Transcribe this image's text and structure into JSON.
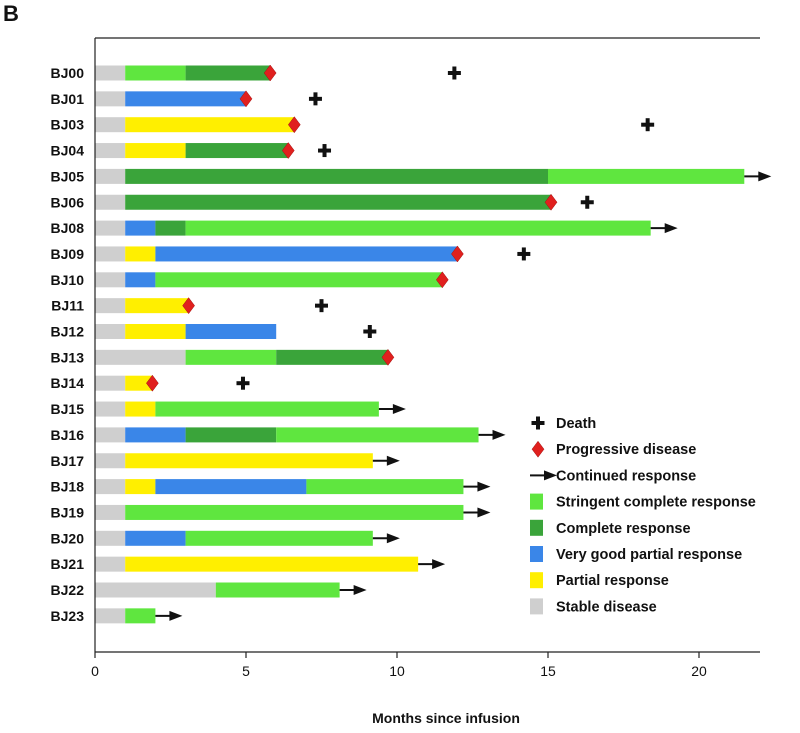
{
  "chart_data": {
    "type": "bar",
    "panel_label": "B",
    "xlabel": "Months since infusion",
    "ylabel": "",
    "xlim": [
      0,
      22
    ],
    "xticks": [
      0,
      5,
      10,
      15,
      20
    ],
    "colors": {
      "stable": "#cfcfcf",
      "partial": "#ffef00",
      "vgpr": "#3a86e8",
      "cr": "#3aa43a",
      "scr": "#5fe63f",
      "progressive": "#e0201e",
      "marker": "#111111"
    },
    "patients": [
      {
        "id": "BJ00",
        "segments": [
          {
            "s": "stable",
            "from": 0,
            "to": 1
          },
          {
            "s": "scr",
            "from": 1,
            "to": 3
          },
          {
            "s": "cr",
            "from": 3,
            "to": 5.8
          }
        ],
        "progressive": 5.8,
        "death": 11.9
      },
      {
        "id": "BJ01",
        "segments": [
          {
            "s": "stable",
            "from": 0,
            "to": 1
          },
          {
            "s": "vgpr",
            "from": 1,
            "to": 5
          }
        ],
        "progressive": 5.0,
        "death": 7.3
      },
      {
        "id": "BJ03",
        "segments": [
          {
            "s": "stable",
            "from": 0,
            "to": 1
          },
          {
            "s": "partial",
            "from": 1,
            "to": 6.6
          }
        ],
        "progressive": 6.6,
        "death": 18.3
      },
      {
        "id": "BJ04",
        "segments": [
          {
            "s": "stable",
            "from": 0,
            "to": 1
          },
          {
            "s": "partial",
            "from": 1,
            "to": 3
          },
          {
            "s": "cr",
            "from": 3,
            "to": 6.4
          }
        ],
        "progressive": 6.4,
        "death": 7.6
      },
      {
        "id": "BJ05",
        "segments": [
          {
            "s": "stable",
            "from": 0,
            "to": 1
          },
          {
            "s": "cr",
            "from": 1,
            "to": 15
          },
          {
            "s": "scr",
            "from": 15,
            "to": 21.5
          }
        ],
        "continued": true
      },
      {
        "id": "BJ06",
        "segments": [
          {
            "s": "stable",
            "from": 0,
            "to": 1
          },
          {
            "s": "cr",
            "from": 1,
            "to": 15.1
          }
        ],
        "progressive": 15.1,
        "death": 16.3
      },
      {
        "id": "BJ08",
        "segments": [
          {
            "s": "stable",
            "from": 0,
            "to": 1
          },
          {
            "s": "vgpr",
            "from": 1,
            "to": 2
          },
          {
            "s": "cr",
            "from": 2,
            "to": 3
          },
          {
            "s": "scr",
            "from": 3,
            "to": 18.4
          }
        ],
        "continued": true
      },
      {
        "id": "BJ09",
        "segments": [
          {
            "s": "stable",
            "from": 0,
            "to": 1
          },
          {
            "s": "partial",
            "from": 1,
            "to": 2
          },
          {
            "s": "vgpr",
            "from": 2,
            "to": 12
          }
        ],
        "progressive": 12.0,
        "death": 14.2
      },
      {
        "id": "BJ10",
        "segments": [
          {
            "s": "stable",
            "from": 0,
            "to": 1
          },
          {
            "s": "vgpr",
            "from": 1,
            "to": 2
          },
          {
            "s": "scr",
            "from": 2,
            "to": 11.5
          }
        ],
        "progressive": 11.5
      },
      {
        "id": "BJ11",
        "segments": [
          {
            "s": "stable",
            "from": 0,
            "to": 1
          },
          {
            "s": "partial",
            "from": 1,
            "to": 3.1
          }
        ],
        "progressive": 3.1,
        "death": 7.5
      },
      {
        "id": "BJ12",
        "segments": [
          {
            "s": "stable",
            "from": 0,
            "to": 1
          },
          {
            "s": "partial",
            "from": 1,
            "to": 3
          },
          {
            "s": "vgpr",
            "from": 3,
            "to": 6
          }
        ],
        "death": 9.1
      },
      {
        "id": "BJ13",
        "segments": [
          {
            "s": "stable",
            "from": 0,
            "to": 3
          },
          {
            "s": "scr",
            "from": 3,
            "to": 6
          },
          {
            "s": "cr",
            "from": 6,
            "to": 9.7
          }
        ],
        "progressive": 9.7
      },
      {
        "id": "BJ14",
        "segments": [
          {
            "s": "stable",
            "from": 0,
            "to": 1
          },
          {
            "s": "partial",
            "from": 1,
            "to": 1.9
          }
        ],
        "progressive": 1.9,
        "death": 4.9
      },
      {
        "id": "BJ15",
        "segments": [
          {
            "s": "stable",
            "from": 0,
            "to": 1
          },
          {
            "s": "partial",
            "from": 1,
            "to": 2
          },
          {
            "s": "scr",
            "from": 2,
            "to": 9.4
          }
        ],
        "continued": true
      },
      {
        "id": "BJ16",
        "segments": [
          {
            "s": "stable",
            "from": 0,
            "to": 1
          },
          {
            "s": "vgpr",
            "from": 1,
            "to": 3
          },
          {
            "s": "cr",
            "from": 3,
            "to": 6
          },
          {
            "s": "scr",
            "from": 6,
            "to": 12.7
          }
        ],
        "continued": true
      },
      {
        "id": "BJ17",
        "segments": [
          {
            "s": "stable",
            "from": 0,
            "to": 1
          },
          {
            "s": "partial",
            "from": 1,
            "to": 9.2
          }
        ],
        "continued": true
      },
      {
        "id": "BJ18",
        "segments": [
          {
            "s": "stable",
            "from": 0,
            "to": 1
          },
          {
            "s": "partial",
            "from": 1,
            "to": 2
          },
          {
            "s": "vgpr",
            "from": 2,
            "to": 7
          },
          {
            "s": "scr",
            "from": 7,
            "to": 12.2
          }
        ],
        "continued": true
      },
      {
        "id": "BJ19",
        "segments": [
          {
            "s": "stable",
            "from": 0,
            "to": 1
          },
          {
            "s": "scr",
            "from": 1,
            "to": 12.2
          }
        ],
        "continued": true
      },
      {
        "id": "BJ20",
        "segments": [
          {
            "s": "stable",
            "from": 0,
            "to": 1
          },
          {
            "s": "vgpr",
            "from": 1,
            "to": 3
          },
          {
            "s": "scr",
            "from": 3,
            "to": 9.2
          }
        ],
        "continued": true
      },
      {
        "id": "BJ21",
        "segments": [
          {
            "s": "stable",
            "from": 0,
            "to": 1
          },
          {
            "s": "partial",
            "from": 1,
            "to": 10.7
          }
        ],
        "continued": true
      },
      {
        "id": "BJ22",
        "segments": [
          {
            "s": "stable",
            "from": 0,
            "to": 4
          },
          {
            "s": "scr",
            "from": 4,
            "to": 8.1
          }
        ],
        "continued": true
      },
      {
        "id": "BJ23",
        "segments": [
          {
            "s": "stable",
            "from": 0,
            "to": 1
          },
          {
            "s": "scr",
            "from": 1,
            "to": 2
          }
        ],
        "continued": true
      }
    ],
    "legend": [
      {
        "kind": "death",
        "label": "Death"
      },
      {
        "kind": "progressive",
        "label": "Progressive disease"
      },
      {
        "kind": "continued",
        "label": "Continued response"
      },
      {
        "kind": "scr",
        "label": "Stringent complete response"
      },
      {
        "kind": "cr",
        "label": "Complete response"
      },
      {
        "kind": "vgpr",
        "label": "Very good partial response"
      },
      {
        "kind": "partial",
        "label": "Partial response"
      },
      {
        "kind": "stable",
        "label": "Stable disease"
      }
    ]
  }
}
